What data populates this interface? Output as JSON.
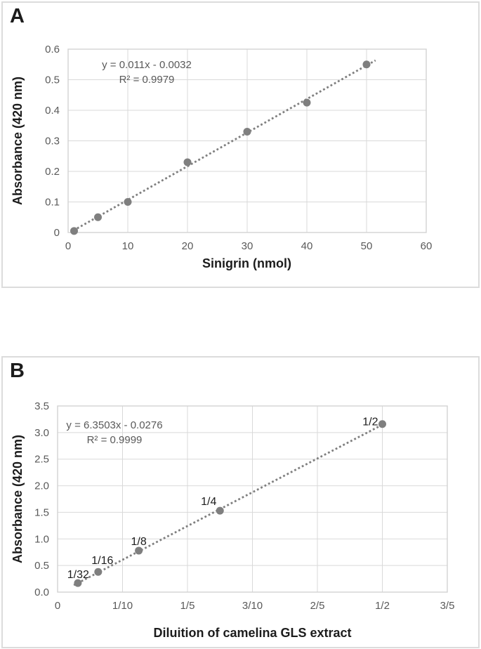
{
  "figure": {
    "background": "#ffffff",
    "panel_border_color": "#dcdcdc"
  },
  "chart_data": [
    {
      "type": "scatter",
      "panel_label": "A",
      "title": "",
      "xlabel": "Sinigrin (nmol)",
      "ylabel": "Absorbance (420 nm)",
      "equation": "y = 0.011x - 0.0032",
      "r_squared": "R² = 0.9979",
      "x": [
        1,
        5,
        10,
        20,
        30,
        40,
        50
      ],
      "y": [
        0.005,
        0.05,
        0.1,
        0.23,
        0.33,
        0.425,
        0.55
      ],
      "point_labels": [],
      "trendline": {
        "style": "dotted",
        "slope": 0.011,
        "intercept": -0.0032,
        "x_start": 0.9,
        "x_end": 51.5
      },
      "xlim": [
        0,
        60
      ],
      "ylim": [
        0,
        0.6
      ],
      "x_tick_values": [
        0,
        10,
        20,
        30,
        40,
        50,
        60
      ],
      "x_tick_labels": [
        "0",
        "10",
        "20",
        "30",
        "40",
        "50",
        "60"
      ],
      "y_tick_values": [
        0,
        0.1,
        0.2,
        0.3,
        0.4,
        0.5,
        0.6
      ],
      "y_tick_labels": [
        "0",
        "0.1",
        "0.2",
        "0.3",
        "0.4",
        "0.5",
        "0.6"
      ],
      "grid": true,
      "legend": "none",
      "colors": {
        "point": "#7f7f7f",
        "trendline": "#7f7f7f",
        "grid": "#d9d9d9",
        "plot_border": "#d2d2d2",
        "tick_text": "#595959",
        "annotation_text": "#595959",
        "axis_title_text": "#1c1c1c",
        "point_label_text": "#1c1c1c"
      }
    },
    {
      "type": "scatter",
      "panel_label": "B",
      "title": "",
      "xlabel": "Diluition of camelina GLS extract",
      "ylabel": "Absorbance (420 nm)",
      "equation": "y = 6.3503x - 0.0276",
      "r_squared": "R² = 0.9999",
      "x": [
        0.03125,
        0.0625,
        0.125,
        0.25,
        0.5
      ],
      "y": [
        0.17,
        0.38,
        0.78,
        1.53,
        3.16
      ],
      "point_labels": [
        "1/32",
        "1/16",
        "1/8",
        "1/4",
        "1/2"
      ],
      "trendline": {
        "style": "dotted",
        "slope": 6.3503,
        "intercept": -0.0276,
        "x_start": 0.025,
        "x_end": 0.5
      },
      "xlim": [
        0,
        0.6
      ],
      "ylim": [
        0,
        3.5
      ],
      "x_tick_values": [
        0,
        0.1,
        0.2,
        0.3,
        0.4,
        0.5,
        0.6
      ],
      "x_tick_labels": [
        "0",
        "1/10",
        "1/5",
        "3/10",
        "2/5",
        "1/2",
        "3/5"
      ],
      "y_tick_values": [
        0,
        0.5,
        1.0,
        1.5,
        2.0,
        2.5,
        3.0,
        3.5
      ],
      "y_tick_labels": [
        "0.0",
        "0.5",
        "1.0",
        "1.5",
        "2.0",
        "2.5",
        "3.0",
        "3.5"
      ],
      "grid": true,
      "legend": "none",
      "colors": {
        "point": "#7f7f7f",
        "trendline": "#7f7f7f",
        "grid": "#d9d9d9",
        "plot_border": "#d2d2d2",
        "tick_text": "#595959",
        "annotation_text": "#595959",
        "axis_title_text": "#1c1c1c",
        "point_label_text": "#1c1c1c"
      }
    }
  ]
}
